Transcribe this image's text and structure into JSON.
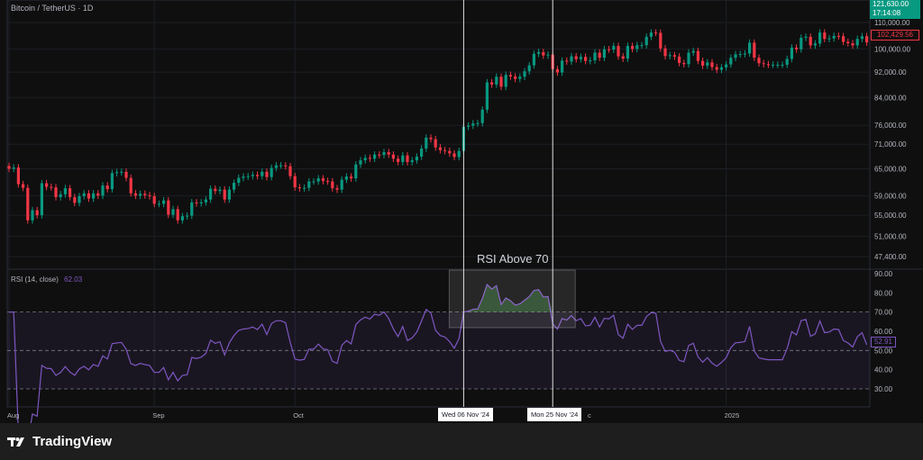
{
  "header": {
    "symbol_title": "Bitcoin / TetherUS · 1D"
  },
  "price_axis": {
    "ticks": [
      110000,
      100000,
      92000,
      84000,
      76000,
      71000,
      65000,
      59000,
      55000,
      51000,
      47400
    ],
    "tick_labels": [
      "110,000.00",
      "100,000.00",
      "92,000.00",
      "84,000.00",
      "76,000.00",
      "71,000.00",
      "65,000.00",
      "59,000.00",
      "55,000.00",
      "51,000.00",
      "47,400.00"
    ],
    "scale": "log",
    "top_badge": {
      "price": "121,630.00",
      "countdown": "17:14:08",
      "color": "#089981"
    },
    "last_price_badge": {
      "price": "102,429.56",
      "color": "#f23645"
    }
  },
  "rsi_pane": {
    "legend_label": "RSI (14, close)",
    "legend_value": "62.03",
    "ticks": [
      90,
      80,
      70,
      60,
      50,
      40,
      30
    ],
    "tick_labels": [
      "90.00",
      "80.00",
      "70.00",
      "60.00",
      "50.00",
      "40.00",
      "30.00"
    ],
    "badge_value": "52.91",
    "line_color": "#7e57c2",
    "band": [
      30,
      70
    ]
  },
  "time_axis": {
    "labels": [
      {
        "text": "Aug",
        "day": 0
      },
      {
        "text": "Sep",
        "day": 31
      },
      {
        "text": "Oct",
        "day": 61
      },
      {
        "text": "2025",
        "day": 153
      }
    ],
    "partial_label": "c",
    "crosshair_labels": [
      "Wed 06 Nov '24",
      "Mon 25 Nov '24"
    ]
  },
  "annotation": {
    "text": "RSI Above 70",
    "start_day": 97,
    "end_day": 116
  },
  "footer": {
    "brand": "TradingView"
  },
  "chart_data": {
    "type": "candlestick",
    "title": "Bitcoin / TetherUS · 1D",
    "x_start": "2024-08-01",
    "x_end": "2025-01-31",
    "up_color": "#089981",
    "down_color": "#f23645",
    "closes": [
      65,
      65.3,
      61.5,
      60.7,
      54,
      56,
      55,
      61.7,
      60.9,
      60.8,
      58.7,
      59.3,
      60.6,
      58.7,
      57.5,
      58.9,
      59.5,
      58.4,
      59.5,
      59,
      61.2,
      60.4,
      64,
      64.2,
      64.3,
      62.9,
      59.5,
      59,
      59.4,
      59.1,
      58.9,
      57.3,
      57.3,
      58,
      55.1,
      56.2,
      54,
      54.8,
      54.9,
      57.6,
      57.4,
      57.6,
      58.2,
      60.5,
      60,
      60.3,
      58.2,
      60.3,
      61.8,
      62.9,
      63.2,
      63.3,
      63.6,
      63.3,
      64.3,
      63.1,
      65.2,
      65.8,
      65.8,
      65.6,
      63.3,
      60.8,
      60.6,
      60.7,
      62.1,
      62.1,
      62.8,
      62.2,
      62.1,
      60.6,
      60.3,
      62.5,
      63.2,
      62.8,
      66,
      67,
      67.6,
      67.4,
      68.4,
      68.3,
      69,
      68.4,
      67.4,
      66.6,
      68.2,
      66.6,
      67,
      67.9,
      69.9,
      72.7,
      72.3,
      70.2,
      69.5,
      69.3,
      68.7,
      67.8,
      69.3,
      75.6,
      75.9,
      76.5,
      76.6,
      80.4,
      88.7,
      88,
      90.5,
      87.3,
      91.1,
      90.6,
      89.8,
      90.5,
      92.3,
      94.3,
      98.3,
      98.9,
      97.7,
      98,
      93,
      91.9,
      95.9,
      95.6,
      97.4,
      96.4,
      97.2,
      95.8,
      96,
      98.7,
      96.9,
      99.9,
      99.8,
      101.1,
      97.4,
      96.6,
      101.1,
      100,
      101.4,
      101.4,
      104.5,
      106.1,
      106,
      100.2,
      97.5,
      97.8,
      97.3,
      95.1,
      94.7,
      98.7,
      99.3,
      95.8,
      94.2,
      95.3,
      93.7,
      92.8,
      93.6,
      94.6,
      96.9,
      98.1,
      98.2,
      98.4,
      102.3,
      96.9,
      95,
      94.7,
      94.5,
      94.5,
      94.5,
      94.5,
      96.5,
      100.5,
      99.9,
      104.1,
      104.5,
      101.3,
      102,
      106.1,
      103.7,
      103.9,
      104.8,
      104.7,
      102.6,
      102.1,
      101.3,
      103.7,
      104.7,
      102.4
    ],
    "closes_unit": "thousand USDT",
    "ylim": [
      47400,
      110000
    ]
  }
}
